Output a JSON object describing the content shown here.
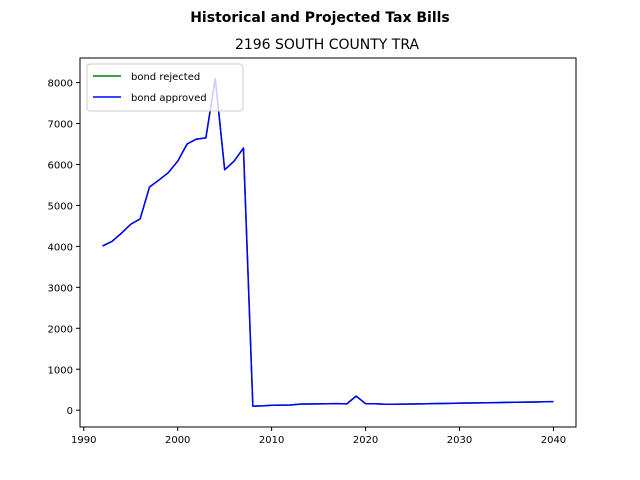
{
  "chart_data": {
    "type": "line",
    "suptitle": "Historical and Projected Tax Bills",
    "title": "2196 SOUTH COUNTY TRA",
    "xlabel": "",
    "ylabel": "",
    "xlim": [
      1989.6,
      2042.4
    ],
    "ylim": [
      -410,
      8600
    ],
    "xticks": [
      1990,
      2000,
      2010,
      2020,
      2030,
      2040
    ],
    "yticks": [
      0,
      1000,
      2000,
      3000,
      4000,
      5000,
      6000,
      7000,
      8000
    ],
    "grid": false,
    "legend_position": "upper left",
    "x": [
      1992,
      1993,
      1994,
      1995,
      1996,
      1997,
      1998,
      1999,
      2000,
      2001,
      2002,
      2003,
      2004,
      2005,
      2006,
      2007,
      2008,
      2009,
      2010,
      2011,
      2012,
      2013,
      2014,
      2015,
      2016,
      2017,
      2018,
      2019,
      2020,
      2021,
      2022,
      2023,
      2024,
      2025,
      2026,
      2027,
      2028,
      2029,
      2030,
      2031,
      2032,
      2033,
      2034,
      2035,
      2036,
      2037,
      2038,
      2039,
      2040
    ],
    "series": [
      {
        "name": "bond rejected",
        "color": "#008000",
        "values": [
          4010,
          4120,
          4320,
          4540,
          4670,
          5450,
          5620,
          5800,
          6080,
          6500,
          6620,
          6650,
          8100,
          5870,
          6080,
          6400,
          100,
          105,
          120,
          125,
          128,
          150,
          152,
          155,
          158,
          160,
          155,
          345,
          160,
          158,
          145,
          147,
          150,
          153,
          156,
          160,
          165,
          168,
          172,
          175,
          178,
          182,
          186,
          190,
          194,
          198,
          202,
          206,
          210
        ]
      },
      {
        "name": "bond approved",
        "color": "#0000ff",
        "values": [
          4010,
          4120,
          4320,
          4540,
          4670,
          5450,
          5620,
          5800,
          6080,
          6500,
          6620,
          6650,
          8100,
          5870,
          6080,
          6400,
          100,
          105,
          120,
          125,
          128,
          150,
          152,
          155,
          158,
          160,
          155,
          345,
          160,
          158,
          145,
          147,
          150,
          153,
          156,
          160,
          165,
          168,
          172,
          175,
          178,
          182,
          186,
          190,
          194,
          198,
          202,
          206,
          210
        ]
      }
    ]
  }
}
